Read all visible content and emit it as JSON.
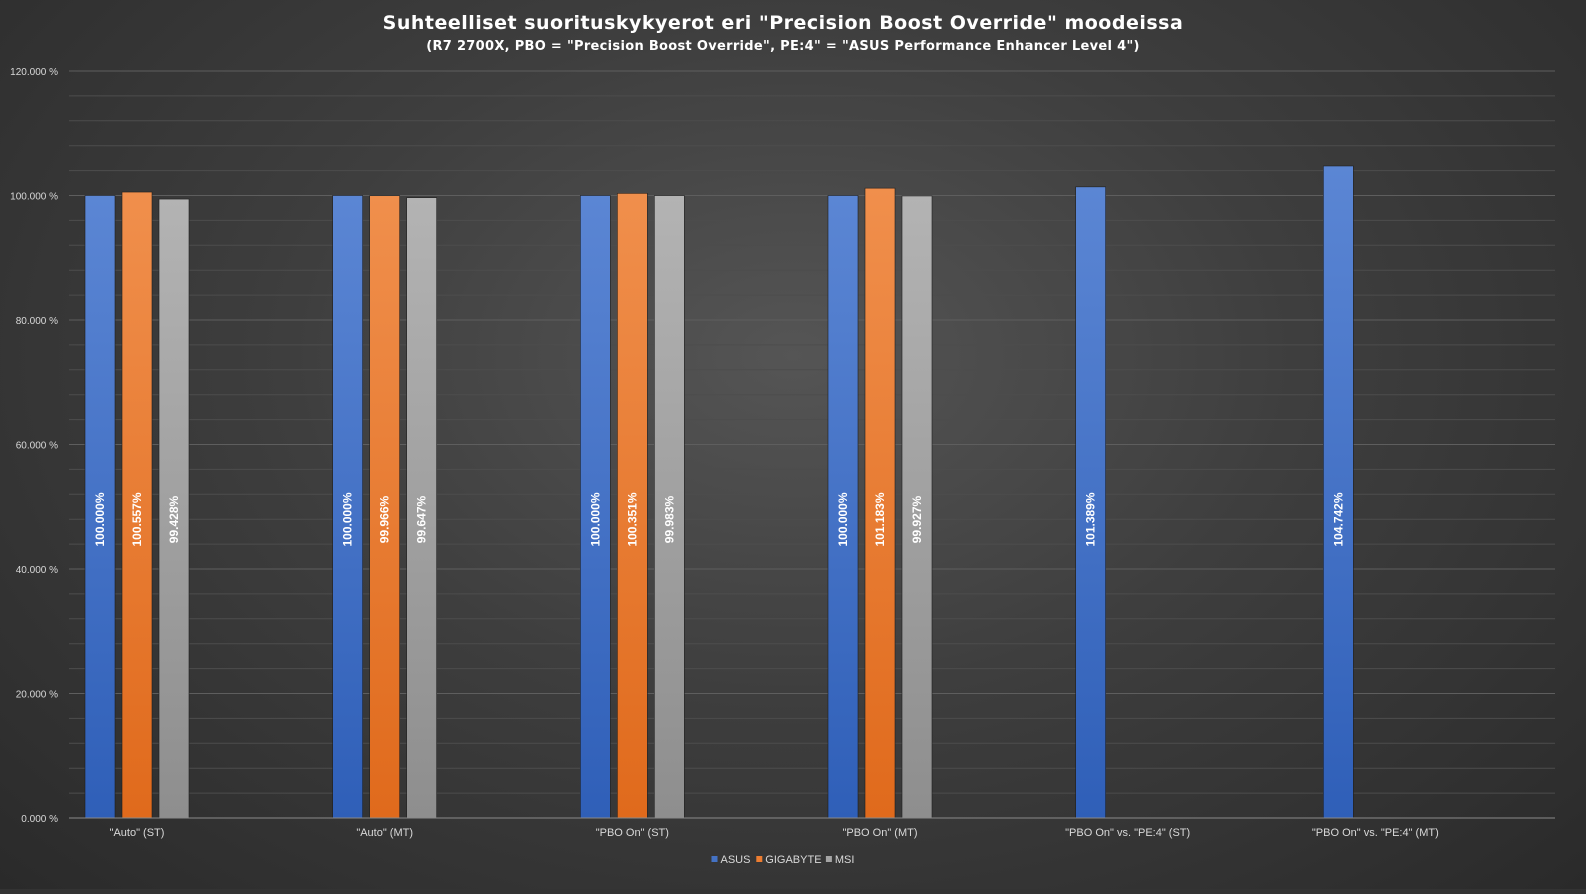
{
  "chart_data": {
    "type": "bar",
    "title": "Suhteelliset suorituskykyerot eri \"Precision Boost Override\" moodeissa",
    "subtitle": "(R7 2700X, PBO = \"Precision Boost Override\", PE:4\" = \"ASUS Performance Enhancer Level 4\")",
    "xlabel": "",
    "ylabel": "",
    "ylim": [
      0,
      120
    ],
    "y_ticks": [
      0,
      20,
      40,
      60,
      80,
      100,
      120
    ],
    "y_tick_labels": [
      "0.000 %",
      "20.000 %",
      "40.000 %",
      "60.000 %",
      "80.000 %",
      "100.000 %",
      "120.000 %"
    ],
    "grid": true,
    "legend_position": "bottom-center",
    "categories": [
      "\"Auto\" (ST)",
      "\"Auto\" (MT)",
      "\"PBO On\" (ST)",
      "\"PBO On\" (MT)",
      "\"PBO On\" vs. \"PE:4\" (ST)",
      "\"PBO On\" vs. \"PE:4\" (MT)"
    ],
    "series": [
      {
        "name": "ASUS",
        "color": "#4472C4",
        "values": [
          100.0,
          100.0,
          100.0,
          100.0,
          101.389,
          104.742
        ],
        "labels": [
          "100.000%",
          "100.000%",
          "100.000%",
          "100.000%",
          "101.389%",
          "104.742%"
        ]
      },
      {
        "name": "GIGABYTE",
        "color": "#ED7D31",
        "values": [
          100.557,
          99.966,
          100.351,
          101.183,
          null,
          null
        ],
        "labels": [
          "100.557%",
          "99.966%",
          "100.351%",
          "101.183%",
          null,
          null
        ]
      },
      {
        "name": "MSI",
        "color": "#A5A5A5",
        "values": [
          99.428,
          99.647,
          99.983,
          99.927,
          null,
          null
        ],
        "labels": [
          "99.428%",
          "99.647%",
          "99.983%",
          "99.927%",
          null,
          null
        ]
      }
    ]
  }
}
